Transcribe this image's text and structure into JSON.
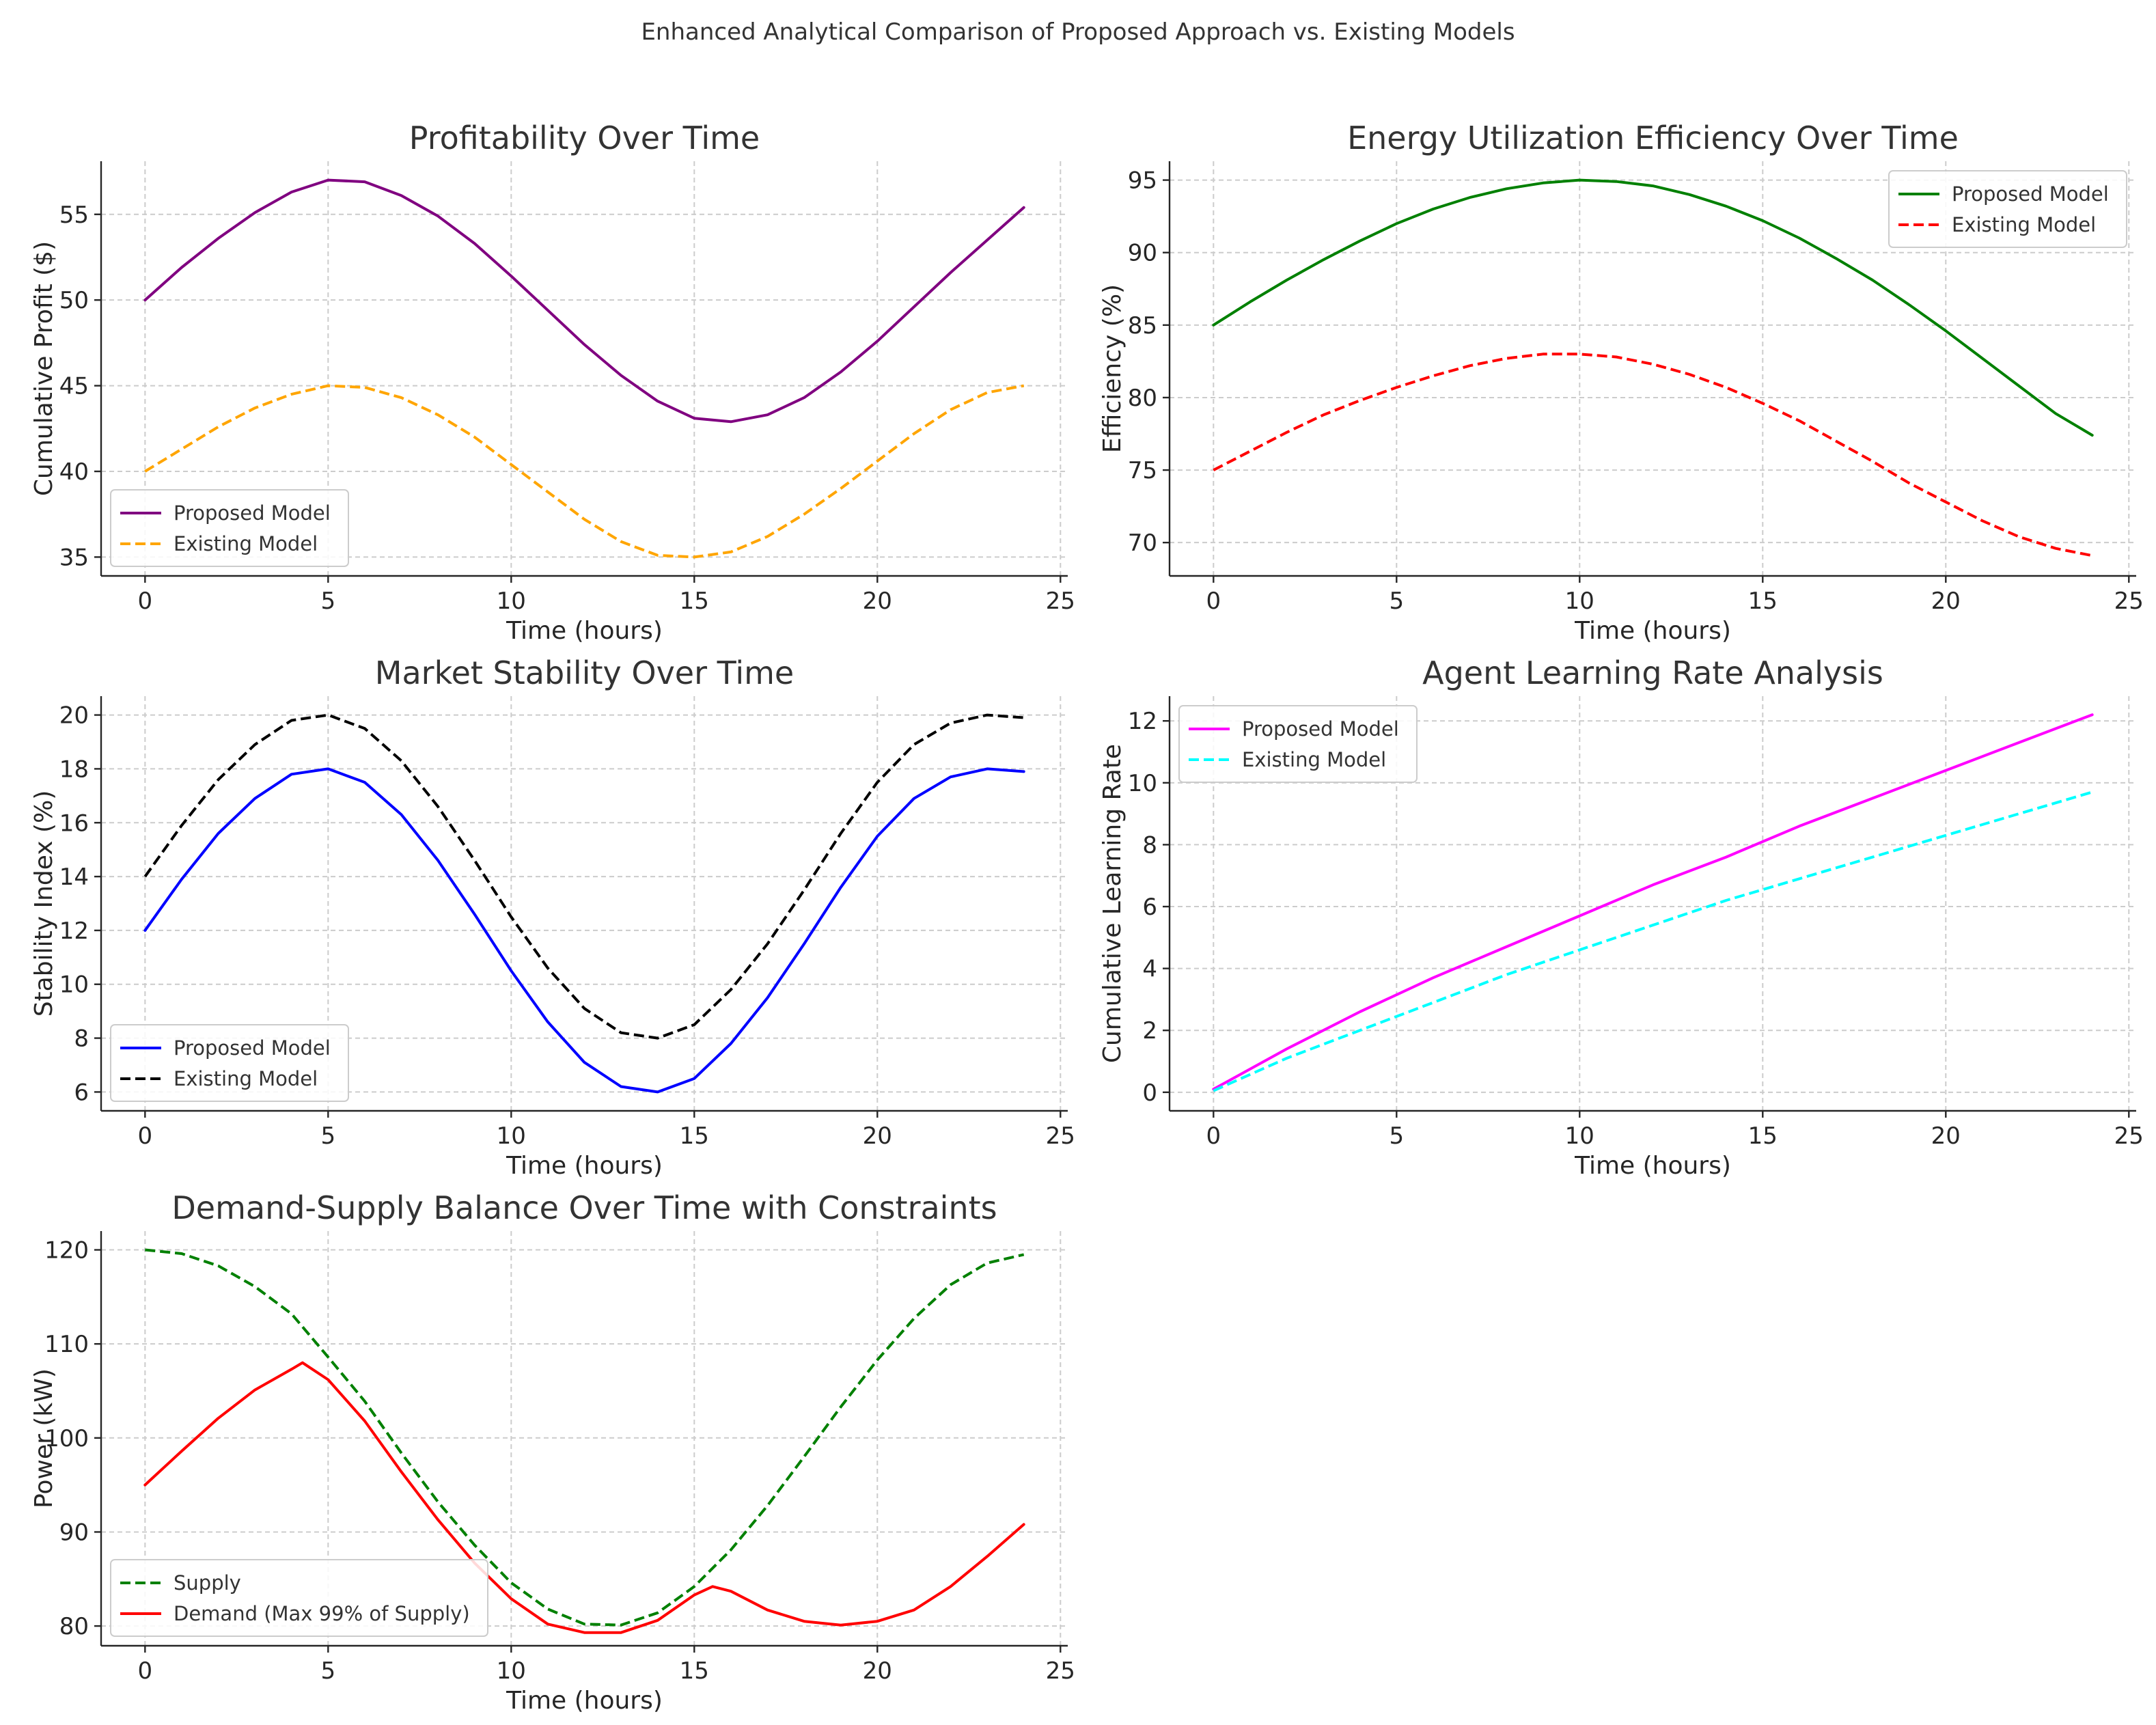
{
  "figure": {
    "title": "Enhanced Analytical Comparison of Proposed Approach vs. Existing Models"
  },
  "chart_data": [
    {
      "type": "line",
      "title": "Profitability Over Time",
      "xlabel": "Time (hours)",
      "ylabel": "Cumulative Profit ($)",
      "xlim": [
        -1.2,
        25.2
      ],
      "ylim": [
        33.9,
        58.1
      ],
      "xticks": [
        0,
        5,
        10,
        15,
        20,
        25
      ],
      "yticks": [
        35,
        40,
        45,
        50,
        55
      ],
      "grid": true,
      "legend": "lower-left",
      "series": [
        {
          "name": "Proposed Model",
          "color": "#800080",
          "dash": "solid",
          "x": [
            0,
            1,
            2,
            3,
            4,
            5,
            6,
            7,
            8,
            9,
            10,
            11,
            12,
            13,
            14,
            15,
            16,
            17,
            18,
            19,
            20,
            21,
            22,
            23,
            24
          ],
          "y": [
            50.0,
            51.9,
            53.6,
            55.1,
            56.3,
            57.0,
            56.9,
            56.1,
            54.9,
            53.3,
            51.4,
            49.4,
            47.4,
            45.6,
            44.1,
            43.1,
            42.9,
            43.3,
            44.3,
            45.8,
            47.6,
            49.6,
            51.6,
            53.5,
            55.4
          ]
        },
        {
          "name": "Existing Model",
          "color": "#ffa500",
          "dash": "dashed",
          "x": [
            0,
            1,
            2,
            3,
            4,
            5,
            6,
            7,
            8,
            9,
            10,
            11,
            12,
            13,
            14,
            15,
            16,
            17,
            18,
            19,
            20,
            21,
            22,
            23,
            24
          ],
          "y": [
            40.0,
            41.3,
            42.6,
            43.7,
            44.5,
            45.0,
            44.9,
            44.3,
            43.3,
            42.0,
            40.4,
            38.8,
            37.2,
            35.9,
            35.1,
            35.0,
            35.3,
            36.2,
            37.5,
            39.0,
            40.6,
            42.2,
            43.6,
            44.6,
            45.0
          ]
        }
      ]
    },
    {
      "type": "line",
      "title": "Energy Utilization Efficiency Over Time",
      "xlabel": "Time (hours)",
      "ylabel": "Efficiency (%)",
      "xlim": [
        -1.2,
        25.2
      ],
      "ylim": [
        67.7,
        96.3
      ],
      "xticks": [
        0,
        5,
        10,
        15,
        20,
        25
      ],
      "yticks": [
        70,
        75,
        80,
        85,
        90,
        95
      ],
      "grid": true,
      "legend": "upper-right",
      "series": [
        {
          "name": "Proposed Model",
          "color": "#008000",
          "dash": "solid",
          "x": [
            0,
            1,
            2,
            3,
            4,
            5,
            6,
            7,
            8,
            9,
            10,
            11,
            12,
            13,
            14,
            15,
            16,
            17,
            18,
            19,
            20,
            21,
            22,
            23,
            24
          ],
          "y": [
            85.0,
            86.6,
            88.1,
            89.5,
            90.8,
            92.0,
            93.0,
            93.8,
            94.4,
            94.8,
            95.0,
            94.9,
            94.6,
            94.0,
            93.2,
            92.2,
            91.0,
            89.6,
            88.1,
            86.4,
            84.6,
            82.7,
            80.8,
            78.9,
            77.4
          ]
        },
        {
          "name": "Existing Model",
          "color": "#ff0000",
          "dash": "dashed",
          "x": [
            0,
            1,
            2,
            3,
            4,
            5,
            6,
            7,
            8,
            9,
            10,
            11,
            12,
            13,
            14,
            15,
            16,
            17,
            18,
            19,
            20,
            21,
            22,
            23,
            24
          ],
          "y": [
            75.0,
            76.3,
            77.6,
            78.8,
            79.8,
            80.7,
            81.5,
            82.2,
            82.7,
            83.0,
            83.0,
            82.8,
            82.3,
            81.6,
            80.7,
            79.6,
            78.4,
            77.0,
            75.6,
            74.1,
            72.8,
            71.5,
            70.4,
            69.6,
            69.1
          ]
        }
      ]
    },
    {
      "type": "line",
      "title": "Market Stability Over Time",
      "xlabel": "Time (hours)",
      "ylabel": "Stability Index (%)",
      "xlim": [
        -1.2,
        25.2
      ],
      "ylim": [
        5.3,
        20.7
      ],
      "xticks": [
        0,
        5,
        10,
        15,
        20,
        25
      ],
      "yticks": [
        6,
        8,
        10,
        12,
        14,
        16,
        18,
        20
      ],
      "grid": true,
      "legend": "lower-left",
      "series": [
        {
          "name": "Proposed Model",
          "color": "#0000ff",
          "dash": "solid",
          "x": [
            0,
            1,
            2,
            3,
            4,
            5,
            6,
            7,
            8,
            9,
            10,
            11,
            12,
            13,
            14,
            15,
            16,
            17,
            18,
            19,
            20,
            21,
            22,
            23,
            24
          ],
          "y": [
            12.0,
            13.9,
            15.6,
            16.9,
            17.8,
            18.0,
            17.5,
            16.3,
            14.6,
            12.6,
            10.5,
            8.6,
            7.1,
            6.2,
            6.0,
            6.5,
            7.8,
            9.5,
            11.5,
            13.6,
            15.5,
            16.9,
            17.7,
            18.0,
            17.9
          ]
        },
        {
          "name": "Existing Model",
          "color": "#000000",
          "dash": "dashed",
          "x": [
            0,
            1,
            2,
            3,
            4,
            5,
            6,
            7,
            8,
            9,
            10,
            11,
            12,
            13,
            14,
            15,
            16,
            17,
            18,
            19,
            20,
            21,
            22,
            23,
            24
          ],
          "y": [
            14.0,
            15.9,
            17.6,
            18.9,
            19.8,
            20.0,
            19.5,
            18.3,
            16.6,
            14.6,
            12.5,
            10.6,
            9.1,
            8.2,
            8.0,
            8.5,
            9.8,
            11.5,
            13.5,
            15.6,
            17.5,
            18.9,
            19.7,
            20.0,
            19.9
          ]
        }
      ]
    },
    {
      "type": "line",
      "title": "Agent Learning Rate Analysis",
      "xlabel": "Time (hours)",
      "ylabel": "Cumulative Learning Rate",
      "xlim": [
        -1.2,
        25.2
      ],
      "ylim": [
        -0.6,
        12.8
      ],
      "xticks": [
        0,
        5,
        10,
        15,
        20,
        25
      ],
      "yticks": [
        0,
        2,
        4,
        6,
        8,
        10,
        12
      ],
      "grid": true,
      "legend": "upper-left",
      "series": [
        {
          "name": "Proposed Model",
          "color": "#ff00ff",
          "dash": "solid",
          "x": [
            0,
            2,
            4,
            6,
            8,
            10,
            12,
            14,
            16,
            18,
            20,
            22,
            24
          ],
          "y": [
            0.1,
            1.4,
            2.6,
            3.7,
            4.7,
            5.7,
            6.7,
            7.6,
            8.6,
            9.5,
            10.4,
            11.3,
            12.2
          ]
        },
        {
          "name": "Existing Model",
          "color": "#00ffff",
          "dash": "dashed",
          "x": [
            0,
            2,
            4,
            6,
            8,
            10,
            12,
            14,
            16,
            18,
            20,
            22,
            24
          ],
          "y": [
            0.05,
            1.1,
            2.0,
            2.9,
            3.8,
            4.6,
            5.4,
            6.2,
            6.9,
            7.6,
            8.3,
            9.0,
            9.7
          ]
        }
      ]
    },
    {
      "type": "line",
      "title": "Demand-Supply Balance Over Time with Constraints",
      "xlabel": "Time (hours)",
      "ylabel": "Power (kW)",
      "xlim": [
        -1.2,
        25.2
      ],
      "ylim": [
        77.9,
        122.0
      ],
      "xticks": [
        0,
        5,
        10,
        15,
        20,
        25
      ],
      "yticks": [
        80,
        90,
        100,
        110,
        120
      ],
      "grid": true,
      "legend": "lower-left",
      "series": [
        {
          "name": "Supply",
          "color": "#008000",
          "dash": "dashed",
          "x": [
            0,
            1,
            2,
            3,
            4,
            5,
            6,
            7,
            8,
            9,
            10,
            11,
            12,
            13,
            14,
            15,
            16,
            17,
            18,
            19,
            20,
            21,
            22,
            23,
            24
          ],
          "y": [
            120.0,
            119.6,
            118.3,
            116.1,
            113.2,
            108.6,
            103.9,
            98.4,
            93.2,
            88.6,
            84.6,
            81.8,
            80.2,
            80.1,
            81.4,
            84.2,
            88.1,
            92.8,
            98.0,
            103.3,
            108.3,
            112.7,
            116.3,
            118.6,
            119.5
          ]
        },
        {
          "name": "Demand (Max 99% of Supply)",
          "color": "#ff0000",
          "dash": "solid",
          "x": [
            0,
            1,
            2,
            3,
            4,
            4.3,
            5,
            6,
            7,
            8,
            9,
            10,
            11,
            12,
            13,
            14,
            15,
            15.5,
            16,
            17,
            18,
            19,
            20,
            21,
            22,
            23,
            24
          ],
          "y": [
            95.0,
            98.6,
            102.1,
            105.1,
            107.3,
            108.0,
            106.2,
            101.8,
            96.4,
            91.3,
            86.7,
            82.9,
            80.2,
            79.3,
            79.3,
            80.6,
            83.3,
            84.2,
            83.7,
            81.7,
            80.5,
            80.1,
            80.5,
            81.7,
            84.2,
            87.4,
            90.8
          ]
        }
      ]
    }
  ]
}
